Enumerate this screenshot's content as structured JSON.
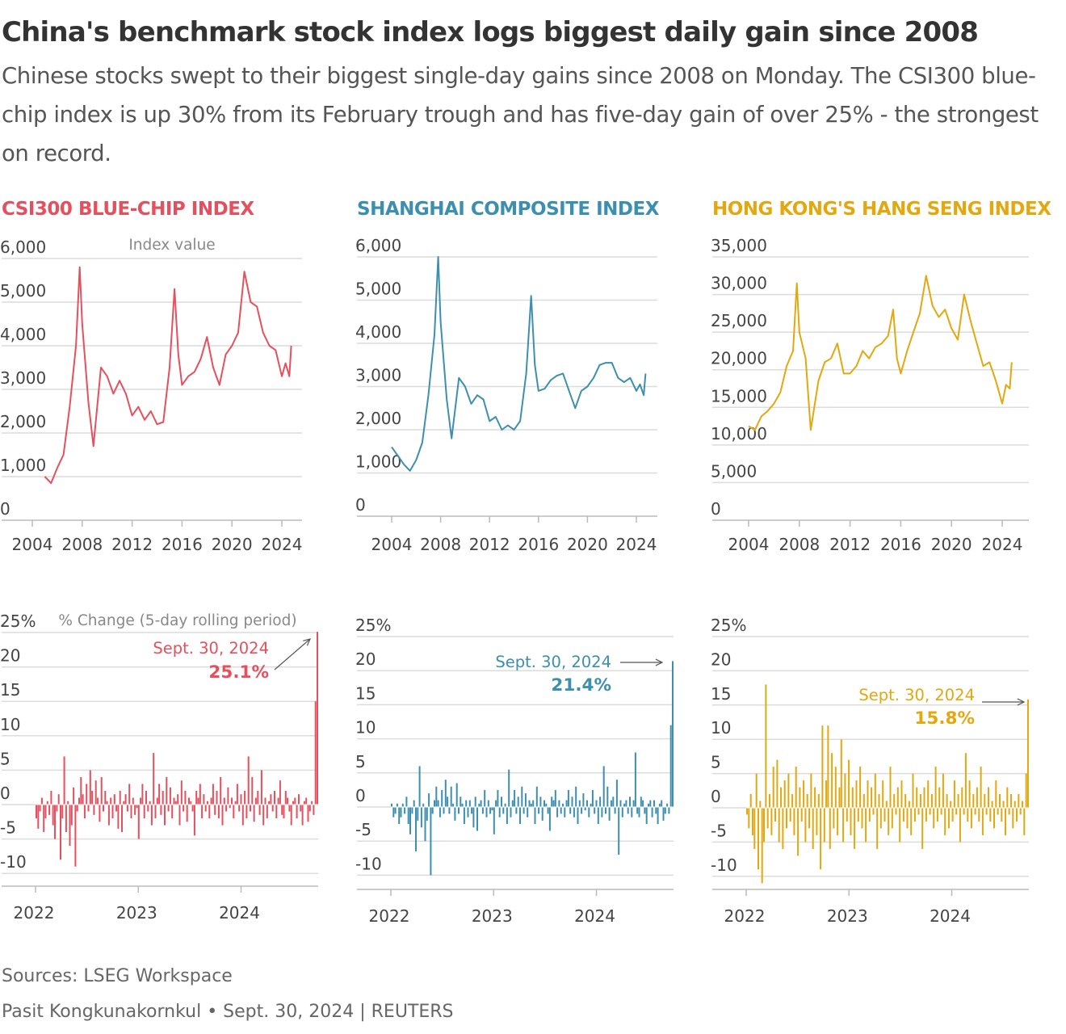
{
  "title": "China's benchmark stock index logs biggest daily gain since 2008",
  "subtitle": "Chinese stocks swept to their biggest single-day gains since 2008 on Monday. The CSI300 blue-chip index is up 30% from its February trough and has five-day gain of over 25% - the strongest on record.",
  "footer": {
    "sources": "Sources: LSEG Workspace",
    "credit": "Pasit Kongkunakornkul • Sept. 30, 2024 | REUTERS"
  },
  "colors": {
    "csi": "#e5505e",
    "shanghai": "#3d8fb0",
    "hangseng": "#e3a80f"
  },
  "panels": {
    "csi": {
      "title": "CSI300 BLUE-CHIP INDEX"
    },
    "shanghai": {
      "title": "SHANGHAI COMPOSITE INDEX"
    },
    "hangseng": {
      "title": "HONG KONG'S HANG SENG INDEX"
    }
  },
  "chart_data": [
    {
      "type": "line",
      "panel": "csi",
      "title": "CSI300 BLUE-CHIP INDEX",
      "ylabel": "Index value",
      "ylim": [
        0,
        6000
      ],
      "yticks": [
        "6,000",
        "5,000",
        "4,000",
        "3,000",
        "2,000",
        "1,000",
        "0"
      ],
      "xticks": [
        "2004",
        "2008",
        "2012",
        "2016",
        "2020",
        "2024"
      ],
      "x": [
        2005.0,
        2005.5,
        2006.0,
        2006.5,
        2007.0,
        2007.5,
        2007.8,
        2008.0,
        2008.5,
        2008.9,
        2009.5,
        2010.0,
        2010.5,
        2011.0,
        2011.5,
        2012.0,
        2012.5,
        2013.0,
        2013.5,
        2014.0,
        2014.5,
        2015.0,
        2015.4,
        2015.7,
        2016.0,
        2016.5,
        2017.0,
        2017.5,
        2018.0,
        2018.5,
        2019.0,
        2019.5,
        2020.0,
        2020.5,
        2021.0,
        2021.5,
        2022.0,
        2022.5,
        2023.0,
        2023.5,
        2024.0,
        2024.3,
        2024.6,
        2024.75
      ],
      "values": [
        1000,
        850,
        1200,
        1500,
        2600,
        4000,
        5800,
        4500,
        2700,
        1700,
        3500,
        3300,
        2900,
        3200,
        2900,
        2400,
        2600,
        2300,
        2500,
        2200,
        2250,
        3500,
        5300,
        3800,
        3100,
        3300,
        3400,
        3700,
        4200,
        3500,
        3100,
        3800,
        4000,
        4300,
        5700,
        5000,
        4900,
        4300,
        4000,
        3900,
        3300,
        3600,
        3300,
        4000
      ]
    },
    {
      "type": "line",
      "panel": "shanghai",
      "title": "SHANGHAI COMPOSITE INDEX",
      "ylim": [
        0,
        6000
      ],
      "yticks": [
        "6,000",
        "5,000",
        "4,000",
        "3,000",
        "2,000",
        "1,000",
        "0"
      ],
      "xticks": [
        "2004",
        "2008",
        "2012",
        "2016",
        "2020",
        "2024"
      ],
      "x": [
        2004.0,
        2004.5,
        2005.0,
        2005.5,
        2006.0,
        2006.5,
        2007.0,
        2007.5,
        2007.8,
        2008.0,
        2008.5,
        2008.9,
        2009.5,
        2010.0,
        2010.5,
        2011.0,
        2011.5,
        2012.0,
        2012.5,
        2013.0,
        2013.5,
        2014.0,
        2014.5,
        2015.0,
        2015.4,
        2015.7,
        2016.0,
        2016.5,
        2017.0,
        2017.5,
        2018.0,
        2018.5,
        2019.0,
        2019.5,
        2020.0,
        2020.5,
        2021.0,
        2021.5,
        2022.0,
        2022.5,
        2023.0,
        2023.5,
        2024.0,
        2024.3,
        2024.6,
        2024.75
      ],
      "values": [
        1600,
        1400,
        1200,
        1050,
        1300,
        1700,
        2800,
        4200,
        6000,
        4500,
        2700,
        1800,
        3200,
        3000,
        2600,
        2800,
        2700,
        2200,
        2300,
        2000,
        2100,
        2000,
        2200,
        3300,
        5100,
        3500,
        2900,
        2950,
        3150,
        3250,
        3300,
        2900,
        2500,
        2900,
        3000,
        3200,
        3500,
        3550,
        3550,
        3200,
        3100,
        3200,
        2900,
        3050,
        2800,
        3300
      ]
    },
    {
      "type": "line",
      "panel": "hangseng",
      "title": "HONG KONG'S HANG SENG INDEX",
      "ylim": [
        0,
        35000
      ],
      "yticks": [
        "35,000",
        "30,000",
        "25,000",
        "20,000",
        "15,000",
        "10,000",
        "5,000",
        "0"
      ],
      "xticks": [
        "2004",
        "2008",
        "2012",
        "2016",
        "2020",
        "2024"
      ],
      "x": [
        2004.0,
        2004.5,
        2005.0,
        2005.5,
        2006.0,
        2006.5,
        2007.0,
        2007.5,
        2007.8,
        2008.0,
        2008.5,
        2008.9,
        2009.5,
        2010.0,
        2010.5,
        2011.0,
        2011.5,
        2012.0,
        2012.5,
        2013.0,
        2013.5,
        2014.0,
        2014.5,
        2015.0,
        2015.4,
        2015.7,
        2016.0,
        2016.5,
        2017.0,
        2017.5,
        2018.0,
        2018.5,
        2019.0,
        2019.5,
        2020.0,
        2020.5,
        2021.0,
        2021.5,
        2022.0,
        2022.5,
        2023.0,
        2023.5,
        2024.0,
        2024.3,
        2024.6,
        2024.75
      ],
      "values": [
        12500,
        12000,
        13800,
        14500,
        15500,
        17000,
        20500,
        22500,
        31500,
        25000,
        21500,
        12000,
        18500,
        21000,
        21500,
        23500,
        19500,
        19500,
        20500,
        22500,
        21500,
        23000,
        23500,
        24500,
        28000,
        21500,
        19500,
        22500,
        25000,
        27500,
        32500,
        28500,
        27000,
        28000,
        25500,
        24000,
        30000,
        26500,
        23500,
        20500,
        21000,
        18500,
        15500,
        18000,
        17500,
        21000
      ]
    },
    {
      "type": "bar",
      "panel": "csi",
      "title": "CSI300 BLUE-CHIP INDEX",
      "ylabel": "% Change (5-day rolling period)",
      "ylim": [
        -12,
        25
      ],
      "yticks": [
        "25%",
        "20",
        "15",
        "10",
        "5",
        "0",
        "-5",
        "-10"
      ],
      "xticks": [
        "2022",
        "2023",
        "2024"
      ],
      "annotation": {
        "date": "Sept. 30, 2024",
        "value": "25.1%"
      },
      "x_start": "2022-01-01",
      "x_end": "2024-09-30",
      "values": [
        -2,
        -3.5,
        -1,
        1,
        -4,
        -2,
        0.5,
        -1.5,
        2,
        -3,
        -5,
        -1,
        1.5,
        -8,
        -2,
        7,
        -4,
        0.5,
        -6,
        -3,
        2.5,
        -9,
        -1,
        1,
        4,
        1.5,
        -2,
        3,
        -1,
        5,
        2,
        -1.5,
        3.5,
        1,
        -2.5,
        4,
        -1,
        2,
        0.5,
        -3,
        1,
        -2,
        1.5,
        -1,
        -3.5,
        2,
        -4,
        0.5,
        1.5,
        -1,
        3,
        -2,
        1,
        -1.5,
        -0.5,
        -5,
        1,
        3,
        -2,
        2,
        -1,
        0.5,
        -3,
        7.5,
        -2,
        1,
        3,
        -1.5,
        2,
        -3,
        4,
        -1,
        2.5,
        -2,
        1,
        0.5,
        1.5,
        -3,
        3.5,
        -1,
        2,
        -2.5,
        1,
        0.5,
        -1,
        -4.5,
        2,
        1,
        3,
        -2,
        1.5,
        -1,
        0.5,
        -2,
        1,
        3,
        -1.5,
        2,
        -2,
        4,
        -3,
        1,
        -1,
        2.5,
        -0.5,
        1,
        -2,
        0.5,
        3,
        -1,
        1.5,
        -3,
        2,
        -2,
        7,
        -1,
        4,
        -2.5,
        1,
        2,
        -1.5,
        5,
        -3,
        1,
        -2,
        0.5,
        1.5,
        -1,
        2,
        -2,
        1,
        3.5,
        -1.5,
        -2,
        2,
        1,
        -1,
        -3,
        0.5,
        1,
        -2,
        1.5,
        -1,
        -3,
        0.5,
        1,
        -2.5,
        -1,
        0.5,
        -1.5,
        15,
        25.1
      ]
    },
    {
      "type": "bar",
      "panel": "shanghai",
      "title": "SHANGHAI COMPOSITE INDEX",
      "ylim": [
        -12,
        25
      ],
      "yticks": [
        "25%",
        "20",
        "15",
        "10",
        "5",
        "0",
        "-5",
        "-10"
      ],
      "xticks": [
        "2022",
        "2023",
        "2024"
      ],
      "annotation": {
        "date": "Sept. 30, 2024",
        "value": "21.4%"
      },
      "x_start": "2022-01-01",
      "x_end": "2024-09-30",
      "values": [
        0.5,
        -1.5,
        -1,
        0.5,
        -2.5,
        -1.5,
        0.5,
        -1,
        1.5,
        -2.5,
        -4,
        -1,
        1,
        -6.5,
        -2,
        6,
        -3,
        0.5,
        -5,
        -2,
        2,
        -10,
        -1,
        1,
        3,
        1,
        -1.5,
        2.5,
        -1,
        4,
        1.5,
        -1,
        3,
        0.5,
        -2,
        3.5,
        -1,
        1.5,
        0.5,
        -2.5,
        1,
        -1.5,
        1,
        -1,
        -3,
        1.5,
        -3.5,
        0.5,
        1,
        -1,
        2.5,
        -1.5,
        1,
        -1,
        -0.5,
        -4,
        1,
        2.5,
        -1.5,
        1.5,
        -1,
        0.5,
        -2.5,
        5.5,
        -1.5,
        1,
        2.5,
        -1,
        1.5,
        -2.5,
        3,
        -1,
        2,
        -1.5,
        1,
        0.5,
        1,
        -2.5,
        3,
        -1,
        1.5,
        -2,
        1,
        0.5,
        -1,
        -3.5,
        1.5,
        1,
        2.5,
        -1.5,
        1,
        -1,
        0.5,
        -1.5,
        1,
        2.5,
        -1,
        1.5,
        -1.5,
        3,
        -2.5,
        1,
        -1,
        2,
        -0.5,
        1,
        -1.5,
        0.5,
        2.5,
        -1,
        1,
        -2.5,
        1.5,
        -1.5,
        6,
        -1,
        3,
        -2,
        1,
        1.5,
        -1,
        4,
        -7,
        1,
        -1.5,
        0.5,
        1,
        -1,
        1.5,
        -1.5,
        1,
        8,
        -1,
        -1.5,
        1.5,
        1,
        -1,
        -2.5,
        0.5,
        1,
        -1.5,
        1,
        -1,
        -2.5,
        0.5,
        1,
        -2,
        -1,
        0.5,
        -1,
        12,
        21.4
      ]
    },
    {
      "type": "bar",
      "panel": "hangseng",
      "title": "HONG KONG'S HANG SENG INDEX",
      "ylim": [
        -12,
        25
      ],
      "yticks": [
        "25%",
        "20",
        "15",
        "10",
        "5",
        "0",
        "-5",
        "-10"
      ],
      "xticks": [
        "2022",
        "2023",
        "2024"
      ],
      "annotation": {
        "date": "Sept. 30, 2024",
        "value": "15.8%"
      },
      "x_start": "2022-01-01",
      "x_end": "2024-09-30",
      "values": [
        -1,
        -3,
        2,
        -4,
        -6,
        5,
        -9,
        1,
        -11,
        -5,
        18,
        -3,
        2,
        -4,
        6,
        -2,
        7,
        -5,
        3,
        -6,
        4,
        -3,
        5,
        -2,
        2,
        -4,
        6,
        -7,
        3,
        -2,
        4,
        -5,
        2,
        -3,
        5,
        -6,
        3,
        -4,
        2,
        -9,
        12,
        -5,
        4,
        12,
        -6,
        8,
        -3,
        6,
        -4,
        3,
        10,
        -5,
        5,
        -2,
        7,
        -4,
        3,
        -6,
        4,
        -2,
        6,
        -3,
        2,
        -5,
        4,
        -2,
        3,
        -1,
        5,
        -6,
        2,
        -3,
        4,
        -2,
        1,
        -4,
        6,
        -3,
        2,
        -1,
        3,
        -5,
        4,
        -2,
        2,
        -3,
        1,
        -4,
        5,
        -2,
        3,
        -1,
        2,
        -6,
        3,
        -2,
        4,
        -1,
        2,
        -3,
        6,
        -2,
        3,
        -1,
        5,
        -4,
        2,
        -3,
        1,
        -2,
        4,
        -1,
        2,
        -5,
        3,
        -1,
        8,
        -2,
        4,
        -3,
        2,
        -1,
        3,
        -2,
        6,
        -4,
        2,
        -1,
        3,
        -2,
        1,
        -3,
        4,
        -1,
        2,
        -2,
        1,
        -4,
        3,
        -1,
        2,
        -3,
        1,
        -2,
        2,
        -1,
        1,
        -4,
        5,
        15.8
      ]
    }
  ]
}
